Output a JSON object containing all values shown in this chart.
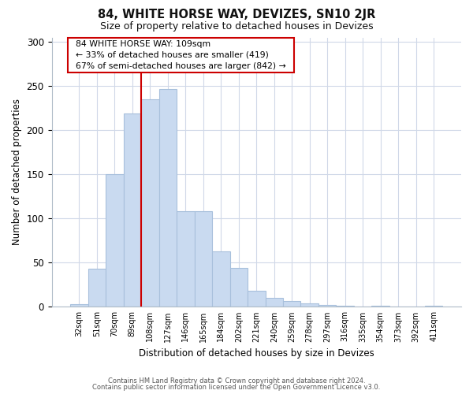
{
  "title": "84, WHITE HORSE WAY, DEVIZES, SN10 2JR",
  "subtitle": "Size of property relative to detached houses in Devizes",
  "xlabel": "Distribution of detached houses by size in Devizes",
  "ylabel": "Number of detached properties",
  "bar_labels": [
    "32sqm",
    "51sqm",
    "70sqm",
    "89sqm",
    "108sqm",
    "127sqm",
    "146sqm",
    "165sqm",
    "184sqm",
    "202sqm",
    "221sqm",
    "240sqm",
    "259sqm",
    "278sqm",
    "297sqm",
    "316sqm",
    "335sqm",
    "354sqm",
    "373sqm",
    "392sqm",
    "411sqm"
  ],
  "bar_values": [
    3,
    43,
    150,
    219,
    235,
    247,
    108,
    108,
    63,
    44,
    18,
    10,
    7,
    4,
    2,
    1,
    0,
    1,
    0,
    0,
    1
  ],
  "bar_color": "#c9daf0",
  "bar_edge_color": "#a8c0dc",
  "red_line_x": 3.5,
  "highlight_color": "#cc0000",
  "ylim": [
    0,
    305
  ],
  "yticks": [
    0,
    50,
    100,
    150,
    200,
    250,
    300
  ],
  "annotation_title": "84 WHITE HORSE WAY: 109sqm",
  "annotation_line1": "← 33% of detached houses are smaller (419)",
  "annotation_line2": "67% of semi-detached houses are larger (842) →",
  "footer_line1": "Contains HM Land Registry data © Crown copyright and database right 2024.",
  "footer_line2": "Contains public sector information licensed under the Open Government Licence v3.0.",
  "background_color": "#ffffff",
  "grid_color": "#d0d8e8"
}
